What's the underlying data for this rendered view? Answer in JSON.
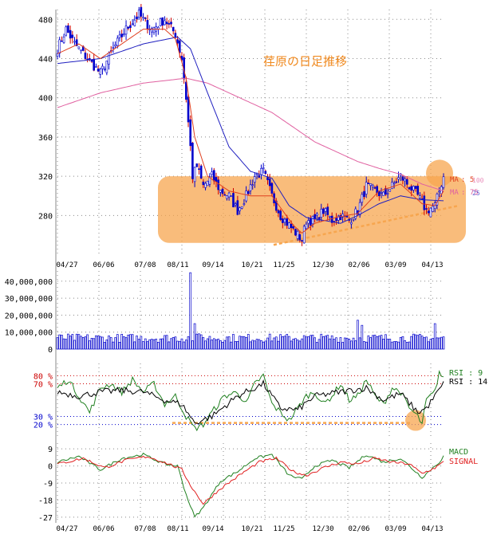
{
  "title": "荏原の日足推移",
  "colors": {
    "highlight": "#f7a64f",
    "candle_up": "#0000cc",
    "candle_down": "#cc0000",
    "ma_short": "#e04020",
    "ma_mid": "#2020c0",
    "ma_long": "#e060a0",
    "rsi_short": "#208020",
    "rsi_long": "#000000",
    "macd": "#208020",
    "signal": "#e02020",
    "volume": "#0000cc",
    "grid": "#888888"
  },
  "chart_data": [
    {
      "type": "candlestick",
      "panel": "price",
      "title": "荏原の日足推移",
      "x_tick_labels": [
        "04/27",
        "06/06",
        "07/08",
        "08/11",
        "09/14",
        "10/21",
        "11/25",
        "12/30",
        "02/06",
        "03/09",
        "04/13"
      ],
      "y_ticks": [
        280,
        320,
        360,
        400,
        440,
        480
      ],
      "ylim": [
        238,
        490
      ],
      "grid": true,
      "legend": [
        {
          "prefix": "MA",
          "value": "5",
          "color": "#e04020"
        },
        {
          "prefix": "MA",
          "value": "100",
          "color": "#e060a0"
        },
        {
          "prefix": "MA",
          "value": "75",
          "color": "#e060a0"
        },
        {
          "prefix": "MA",
          "value": "25",
          "color": "#2020c0"
        }
      ],
      "close_anchors": [
        [
          0,
          450
        ],
        [
          4,
          470
        ],
        [
          8,
          455
        ],
        [
          14,
          440
        ],
        [
          20,
          425
        ],
        [
          26,
          450
        ],
        [
          32,
          470
        ],
        [
          38,
          485
        ],
        [
          44,
          470
        ],
        [
          50,
          480
        ],
        [
          55,
          465
        ],
        [
          58,
          440
        ],
        [
          60,
          400
        ],
        [
          62,
          350
        ],
        [
          63,
          320
        ],
        [
          65,
          330
        ],
        [
          68,
          310
        ],
        [
          72,
          320
        ],
        [
          76,
          305
        ],
        [
          80,
          300
        ],
        [
          84,
          285
        ],
        [
          88,
          300
        ],
        [
          92,
          320
        ],
        [
          96,
          325
        ],
        [
          100,
          300
        ],
        [
          104,
          280
        ],
        [
          108,
          270
        ],
        [
          112,
          260
        ],
        [
          114,
          255
        ],
        [
          116,
          275
        ],
        [
          120,
          275
        ],
        [
          124,
          285
        ],
        [
          128,
          275
        ],
        [
          132,
          280
        ],
        [
          136,
          275
        ],
        [
          140,
          285
        ],
        [
          144,
          310
        ],
        [
          148,
          305
        ],
        [
          152,
          300
        ],
        [
          156,
          310
        ],
        [
          160,
          320
        ],
        [
          164,
          310
        ],
        [
          168,
          300
        ],
        [
          172,
          285
        ],
        [
          176,
          290
        ],
        [
          178,
          305
        ],
        [
          180,
          320
        ]
      ],
      "ma_short_anchors": [
        [
          0,
          445
        ],
        [
          10,
          455
        ],
        [
          20,
          440
        ],
        [
          30,
          455
        ],
        [
          40,
          470
        ],
        [
          50,
          470
        ],
        [
          55,
          460
        ],
        [
          60,
          420
        ],
        [
          64,
          360
        ],
        [
          70,
          320
        ],
        [
          80,
          305
        ],
        [
          90,
          300
        ],
        [
          100,
          300
        ],
        [
          110,
          270
        ],
        [
          114,
          262
        ],
        [
          120,
          272
        ],
        [
          130,
          278
        ],
        [
          140,
          282
        ],
        [
          150,
          305
        ],
        [
          160,
          312
        ],
        [
          170,
          292
        ],
        [
          176,
          290
        ],
        [
          180,
          305
        ]
      ],
      "ma_mid_anchors": [
        [
          0,
          435
        ],
        [
          20,
          440
        ],
        [
          40,
          455
        ],
        [
          56,
          462
        ],
        [
          62,
          450
        ],
        [
          70,
          405
        ],
        [
          80,
          350
        ],
        [
          90,
          325
        ],
        [
          100,
          318
        ],
        [
          108,
          290
        ],
        [
          116,
          278
        ],
        [
          124,
          275
        ],
        [
          132,
          272
        ],
        [
          140,
          280
        ],
        [
          150,
          292
        ],
        [
          160,
          300
        ],
        [
          170,
          296
        ],
        [
          180,
          295
        ]
      ],
      "ma_long_anchors": [
        [
          0,
          390
        ],
        [
          20,
          405
        ],
        [
          40,
          415
        ],
        [
          60,
          420
        ],
        [
          70,
          415
        ],
        [
          80,
          405
        ],
        [
          90,
          395
        ],
        [
          100,
          385
        ],
        [
          110,
          370
        ],
        [
          120,
          355
        ],
        [
          130,
          345
        ],
        [
          140,
          335
        ],
        [
          150,
          328
        ],
        [
          160,
          322
        ],
        [
          170,
          312
        ],
        [
          180,
          305
        ]
      ],
      "annotations": {
        "consolidation_box": "range",
        "support_trendline": "dashed",
        "breakout_circle": "circle"
      }
    },
    {
      "type": "bar",
      "panel": "volume",
      "y_tick_labels": [
        "0",
        "10,000,000",
        "20,000,000",
        "30,000,000",
        "40,000,000"
      ],
      "y_ticks": [
        0,
        10000000,
        20000000,
        30000000,
        40000000
      ],
      "ylim": [
        0,
        46000000
      ],
      "grid": true,
      "spikes": [
        [
          62,
          45000000
        ],
        [
          64,
          15000000
        ],
        [
          66,
          9000000
        ],
        [
          140,
          17000000
        ],
        [
          142,
          14000000
        ],
        [
          176,
          15000000
        ]
      ],
      "base_range": [
        4000000,
        9000000
      ]
    },
    {
      "type": "line",
      "panel": "rsi",
      "series": [
        {
          "name": "RSI : 9",
          "anchors": [
            [
              0,
              65
            ],
            [
              5,
              75
            ],
            [
              10,
              55
            ],
            [
              15,
              35
            ],
            [
              20,
              65
            ],
            [
              25,
              70
            ],
            [
              30,
              60
            ],
            [
              35,
              75
            ],
            [
              40,
              60
            ],
            [
              45,
              70
            ],
            [
              50,
              45
            ],
            [
              55,
              55
            ],
            [
              60,
              30
            ],
            [
              64,
              15
            ],
            [
              68,
              20
            ],
            [
              72,
              35
            ],
            [
              78,
              55
            ],
            [
              84,
              60
            ],
            [
              88,
              45
            ],
            [
              92,
              70
            ],
            [
              96,
              80
            ],
            [
              100,
              45
            ],
            [
              104,
              35
            ],
            [
              108,
              25
            ],
            [
              112,
              40
            ],
            [
              116,
              55
            ],
            [
              120,
              60
            ],
            [
              124,
              45
            ],
            [
              128,
              55
            ],
            [
              132,
              70
            ],
            [
              136,
              50
            ],
            [
              140,
              55
            ],
            [
              144,
              75
            ],
            [
              148,
              55
            ],
            [
              152,
              45
            ],
            [
              156,
              65
            ],
            [
              160,
              60
            ],
            [
              164,
              40
            ],
            [
              168,
              30
            ],
            [
              170,
              20
            ],
            [
              172,
              50
            ],
            [
              176,
              60
            ],
            [
              178,
              85
            ],
            [
              180,
              75
            ]
          ]
        },
        {
          "name": "RSI : 14",
          "anchors": [
            [
              0,
              60
            ],
            [
              10,
              55
            ],
            [
              20,
              60
            ],
            [
              30,
              62
            ],
            [
              40,
              60
            ],
            [
              50,
              50
            ],
            [
              58,
              45
            ],
            [
              64,
              22
            ],
            [
              72,
              30
            ],
            [
              84,
              55
            ],
            [
              96,
              70
            ],
            [
              104,
              40
            ],
            [
              112,
              38
            ],
            [
              120,
              55
            ],
            [
              132,
              60
            ],
            [
              144,
              65
            ],
            [
              152,
              50
            ],
            [
              160,
              58
            ],
            [
              168,
              35
            ],
            [
              172,
              40
            ],
            [
              180,
              70
            ]
          ]
        }
      ],
      "y_tick_labels": [
        "80 %",
        "70 %",
        "30 %",
        "20 %"
      ],
      "y_ticks": [
        80,
        70,
        30,
        20
      ],
      "ylim": [
        5,
        95
      ],
      "annotations": {
        "oversold_line": "dashed",
        "oversold_circle": "circle"
      }
    },
    {
      "type": "line",
      "panel": "macd",
      "series": [
        {
          "name": "MACD",
          "anchors": [
            [
              0,
              2
            ],
            [
              10,
              5
            ],
            [
              20,
              -2
            ],
            [
              30,
              4
            ],
            [
              40,
              6
            ],
            [
              50,
              1
            ],
            [
              56,
              0
            ],
            [
              60,
              -15
            ],
            [
              64,
              -27
            ],
            [
              68,
              -22
            ],
            [
              76,
              -8
            ],
            [
              84,
              -3
            ],
            [
              92,
              4
            ],
            [
              100,
              6
            ],
            [
              108,
              -5
            ],
            [
              114,
              -7
            ],
            [
              120,
              0
            ],
            [
              128,
              3
            ],
            [
              136,
              -1
            ],
            [
              144,
              6
            ],
            [
              152,
              2
            ],
            [
              160,
              4
            ],
            [
              166,
              -2
            ],
            [
              170,
              -6
            ],
            [
              174,
              -2
            ],
            [
              178,
              2
            ],
            [
              180,
              5
            ]
          ]
        },
        {
          "name": "SIGNAL",
          "anchors": [
            [
              0,
              1
            ],
            [
              12,
              4
            ],
            [
              22,
              -1
            ],
            [
              32,
              3
            ],
            [
              42,
              5
            ],
            [
              52,
              1
            ],
            [
              58,
              -2
            ],
            [
              63,
              -12
            ],
            [
              68,
              -20
            ],
            [
              76,
              -12
            ],
            [
              86,
              -4
            ],
            [
              94,
              2
            ],
            [
              102,
              4
            ],
            [
              110,
              -3
            ],
            [
              116,
              -5
            ],
            [
              124,
              -1
            ],
            [
              132,
              2
            ],
            [
              140,
              1
            ],
            [
              148,
              4
            ],
            [
              156,
              2
            ],
            [
              164,
              1
            ],
            [
              170,
              -4
            ],
            [
              176,
              -1
            ],
            [
              180,
              2
            ]
          ]
        }
      ],
      "y_ticks": [
        9,
        0,
        -9,
        -18,
        -27
      ],
      "y_tick_labels": [
        "9",
        "0",
        "-9",
        "-18",
        "-27"
      ],
      "ylim": [
        -30,
        12
      ]
    }
  ]
}
